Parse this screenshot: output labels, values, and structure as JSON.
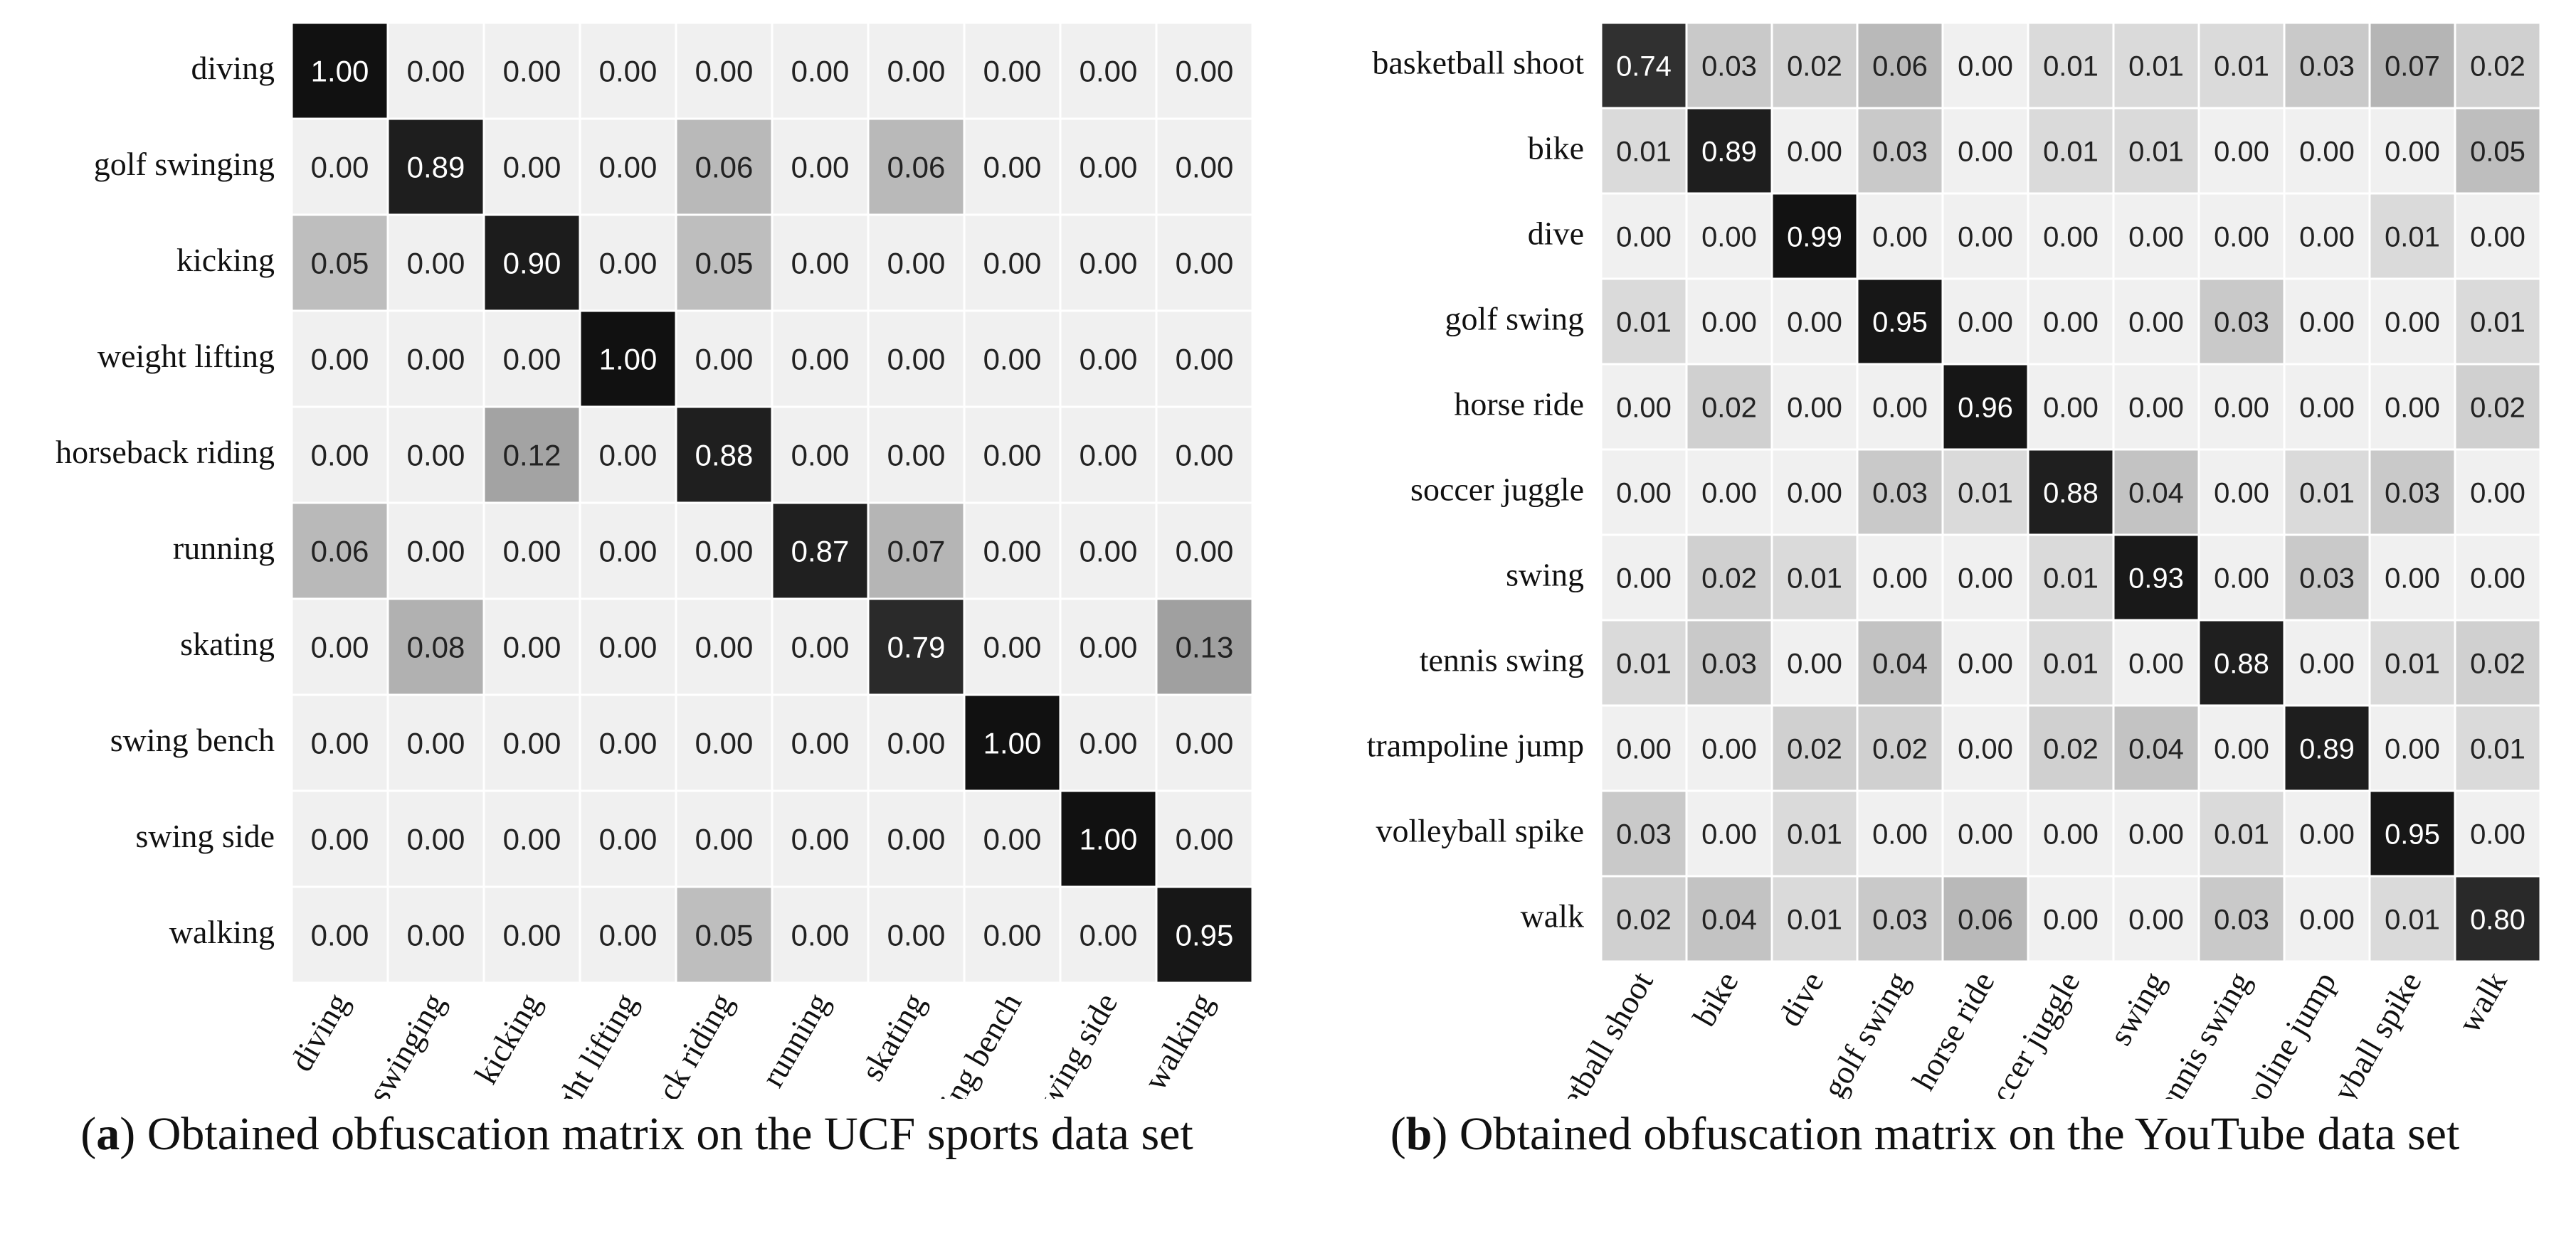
{
  "chart_data": [
    {
      "type": "heatmap",
      "panel": "a",
      "caption": "Obtained obfuscation matrix on the UCF sports data set",
      "row_labels": [
        "diving",
        "golf swinging",
        "kicking",
        "weight lifting",
        "horseback riding",
        "running",
        "skating",
        "swing bench",
        "swing side",
        "walking"
      ],
      "col_labels": [
        "diving",
        "golf swinging",
        "kicking",
        "weight lifting",
        "horseback riding",
        "running",
        "skating",
        "swing bench",
        "swing side",
        "walking"
      ],
      "values": [
        [
          1.0,
          0.0,
          0.0,
          0.0,
          0.0,
          0.0,
          0.0,
          0.0,
          0.0,
          0.0
        ],
        [
          0.0,
          0.89,
          0.0,
          0.0,
          0.06,
          0.0,
          0.06,
          0.0,
          0.0,
          0.0
        ],
        [
          0.05,
          0.0,
          0.9,
          0.0,
          0.05,
          0.0,
          0.0,
          0.0,
          0.0,
          0.0
        ],
        [
          0.0,
          0.0,
          0.0,
          1.0,
          0.0,
          0.0,
          0.0,
          0.0,
          0.0,
          0.0
        ],
        [
          0.0,
          0.0,
          0.12,
          0.0,
          0.88,
          0.0,
          0.0,
          0.0,
          0.0,
          0.0
        ],
        [
          0.06,
          0.0,
          0.0,
          0.0,
          0.0,
          0.87,
          0.07,
          0.0,
          0.0,
          0.0
        ],
        [
          0.0,
          0.08,
          0.0,
          0.0,
          0.0,
          0.0,
          0.79,
          0.0,
          0.0,
          0.13
        ],
        [
          0.0,
          0.0,
          0.0,
          0.0,
          0.0,
          0.0,
          0.0,
          1.0,
          0.0,
          0.0
        ],
        [
          0.0,
          0.0,
          0.0,
          0.0,
          0.0,
          0.0,
          0.0,
          0.0,
          1.0,
          0.0
        ],
        [
          0.0,
          0.0,
          0.0,
          0.0,
          0.05,
          0.0,
          0.0,
          0.0,
          0.0,
          0.95
        ]
      ],
      "value_range": [
        0,
        1
      ],
      "colors": {
        "low": "#f0f0f0",
        "high": "#111111"
      }
    },
    {
      "type": "heatmap",
      "panel": "b",
      "caption": "Obtained obfuscation matrix on the YouTube data set",
      "row_labels": [
        "basketball shoot",
        "bike",
        "dive",
        "golf swing",
        "horse ride",
        "soccer juggle",
        "swing",
        "tennis swing",
        "trampoline jump",
        "volleyball spike",
        "walk"
      ],
      "col_labels": [
        "basketball shoot",
        "bike",
        "dive",
        "golf swing",
        "horse ride",
        "soccer juggle",
        "swing",
        "tennis swing",
        "trampoline jump",
        "volleyball spike",
        "walk"
      ],
      "values": [
        [
          0.74,
          0.03,
          0.02,
          0.06,
          0.0,
          0.01,
          0.01,
          0.01,
          0.03,
          0.07,
          0.02
        ],
        [
          0.01,
          0.89,
          0.0,
          0.03,
          0.0,
          0.01,
          0.01,
          0.0,
          0.0,
          0.0,
          0.05
        ],
        [
          0.0,
          0.0,
          0.99,
          0.0,
          0.0,
          0.0,
          0.0,
          0.0,
          0.0,
          0.01,
          0.0
        ],
        [
          0.01,
          0.0,
          0.0,
          0.95,
          0.0,
          0.0,
          0.0,
          0.03,
          0.0,
          0.0,
          0.01
        ],
        [
          0.0,
          0.02,
          0.0,
          0.0,
          0.96,
          0.0,
          0.0,
          0.0,
          0.0,
          0.0,
          0.02
        ],
        [
          0.0,
          0.0,
          0.0,
          0.03,
          0.01,
          0.88,
          0.04,
          0.0,
          0.01,
          0.03,
          0.0
        ],
        [
          0.0,
          0.02,
          0.01,
          0.0,
          0.0,
          0.01,
          0.93,
          0.0,
          0.03,
          0.0,
          0.0
        ],
        [
          0.01,
          0.03,
          0.0,
          0.04,
          0.0,
          0.01,
          0.0,
          0.88,
          0.0,
          0.01,
          0.02
        ],
        [
          0.0,
          0.0,
          0.02,
          0.02,
          0.0,
          0.02,
          0.04,
          0.0,
          0.89,
          0.0,
          0.01
        ],
        [
          0.03,
          0.0,
          0.01,
          0.0,
          0.0,
          0.0,
          0.0,
          0.01,
          0.0,
          0.95,
          0.0
        ],
        [
          0.02,
          0.04,
          0.01,
          0.03,
          0.06,
          0.0,
          0.0,
          0.03,
          0.0,
          0.01,
          0.8
        ]
      ],
      "value_range": [
        0,
        1
      ],
      "colors": {
        "low": "#f0f0f0",
        "high": "#111111"
      }
    }
  ]
}
